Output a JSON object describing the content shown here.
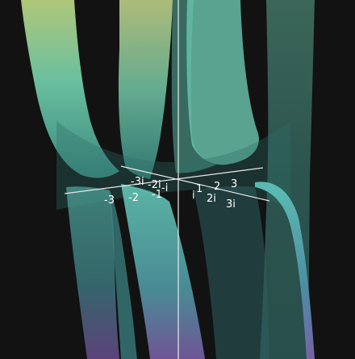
{
  "chart_data": {
    "type": "surface",
    "title": "",
    "grid": false,
    "axes": {
      "real": {
        "ticks": [
          -3,
          -2,
          -1,
          1,
          2,
          3
        ],
        "tick_labels": [
          "-3",
          "-2",
          "-1",
          "1",
          "2",
          "3"
        ]
      },
      "imaginary": {
        "ticks": [
          -3,
          -2,
          -1,
          1,
          2,
          3
        ],
        "tick_labels": [
          "-3i",
          "-2i",
          "-i",
          "i",
          "2i",
          "3i"
        ]
      },
      "vertical": {
        "ticks": [],
        "tick_labels": []
      }
    },
    "colors": {
      "background": "#121212",
      "surface_high": "#c8d98a",
      "surface_mid": "#5cc7b0",
      "surface_low": "#7a4f9a",
      "axis": "#e8e8e8"
    }
  }
}
